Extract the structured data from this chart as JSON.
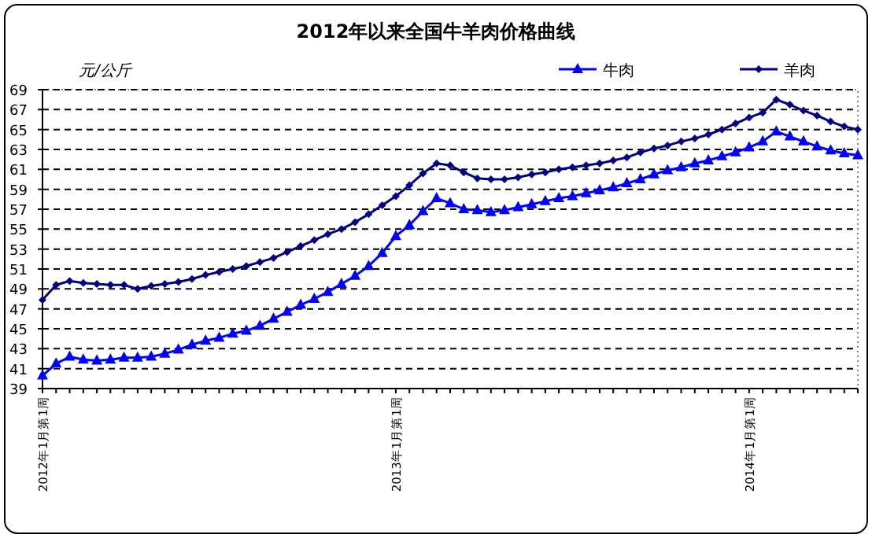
{
  "chart_data": {
    "type": "line",
    "title": "2012年以来全国牛羊肉价格曲线",
    "ylabel": "元/公斤",
    "categories": [
      "2012年1月第1周",
      null,
      null,
      null,
      null,
      null,
      null,
      null,
      null,
      null,
      null,
      null,
      null,
      null,
      null,
      null,
      null,
      null,
      null,
      null,
      null,
      null,
      null,
      null,
      null,
      null,
      "2013年1月第1周",
      null,
      null,
      null,
      null,
      null,
      null,
      null,
      null,
      null,
      null,
      null,
      null,
      null,
      null,
      null,
      null,
      null,
      null,
      null,
      null,
      null,
      null,
      null,
      null,
      null,
      "2014年1月第1周",
      null,
      null,
      null,
      null,
      null,
      null,
      null,
      null
    ],
    "ylim": [
      39,
      69
    ],
    "yticks": [
      39,
      41,
      43,
      45,
      47,
      49,
      51,
      53,
      55,
      57,
      59,
      61,
      63,
      65,
      67,
      69
    ],
    "grid": "y",
    "legend": "top right",
    "series": [
      {
        "name": "牛肉",
        "color": "#0000ff",
        "marker": "triangle",
        "values": [
          40.3,
          41.5,
          42.2,
          41.9,
          41.8,
          41.9,
          42.1,
          42.1,
          42.2,
          42.5,
          42.9,
          43.4,
          43.8,
          44.1,
          44.5,
          44.8,
          45.3,
          46.0,
          46.7,
          47.4,
          48.0,
          48.7,
          49.5,
          50.3,
          51.3,
          52.6,
          54.3,
          55.4,
          56.8,
          58.1,
          57.6,
          57.0,
          56.9,
          56.7,
          56.9,
          57.2,
          57.5,
          57.8,
          58.1,
          58.3,
          58.6,
          58.9,
          59.2,
          59.6,
          60.0,
          60.5,
          60.9,
          61.2,
          61.6,
          61.9,
          62.3,
          62.7,
          63.2,
          63.8,
          64.8,
          64.3,
          63.8,
          63.3,
          62.9,
          62.6,
          62.4
        ]
      },
      {
        "name": "羊肉",
        "color": "#000080",
        "marker": "diamond",
        "values": [
          47.9,
          49.4,
          49.8,
          49.6,
          49.5,
          49.4,
          49.4,
          49.0,
          49.3,
          49.5,
          49.7,
          50.0,
          50.4,
          50.7,
          51.0,
          51.3,
          51.7,
          52.1,
          52.7,
          53.3,
          53.9,
          54.5,
          55.0,
          55.7,
          56.5,
          57.4,
          58.3,
          59.4,
          60.6,
          61.6,
          61.4,
          60.7,
          60.1,
          60.0,
          60.0,
          60.2,
          60.5,
          60.7,
          61.0,
          61.2,
          61.4,
          61.6,
          61.9,
          62.2,
          62.7,
          63.1,
          63.4,
          63.8,
          64.1,
          64.5,
          65.0,
          65.6,
          66.2,
          66.7,
          68.0,
          67.5,
          66.9,
          66.4,
          65.8,
          65.3,
          65.0
        ]
      }
    ]
  }
}
